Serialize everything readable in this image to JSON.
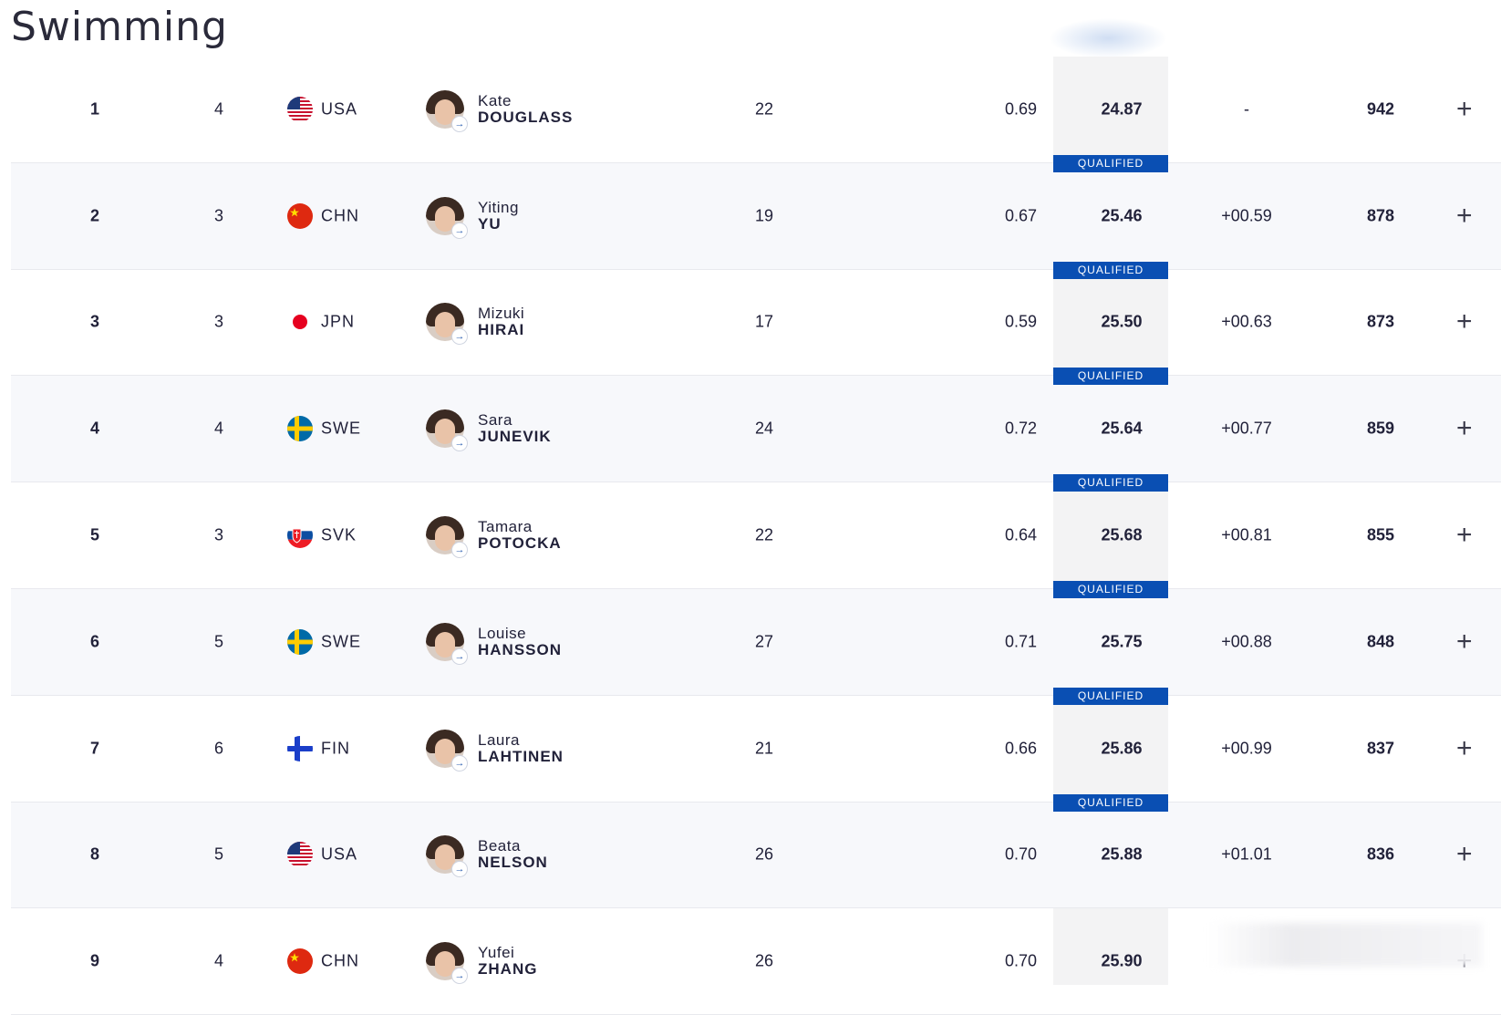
{
  "page": {
    "title": "Swimming"
  },
  "colors": {
    "qualified_bg": "#0a4fb3",
    "accent": "#0a4fb3"
  },
  "rows": [
    {
      "rank": "1",
      "lane": "4",
      "noc": "USA",
      "flag": "usa-flag",
      "first": "Kate",
      "last": "DOUGLASS",
      "age": "22",
      "rt": "0.69",
      "time": "24.87",
      "behind": "-",
      "points": "942",
      "qualified": ""
    },
    {
      "rank": "2",
      "lane": "3",
      "noc": "CHN",
      "flag": "chn-flag",
      "first": "Yiting",
      "last": "YU",
      "age": "19",
      "rt": "0.67",
      "time": "25.46",
      "behind": "+00.59",
      "points": "878",
      "qualified": "QUALIFIED"
    },
    {
      "rank": "3",
      "lane": "3",
      "noc": "JPN",
      "flag": "jpn-flag",
      "first": "Mizuki",
      "last": "HIRAI",
      "age": "17",
      "rt": "0.59",
      "time": "25.50",
      "behind": "+00.63",
      "points": "873",
      "qualified": "QUALIFIED"
    },
    {
      "rank": "4",
      "lane": "4",
      "noc": "SWE",
      "flag": "swe-flag",
      "first": "Sara",
      "last": "JUNEVIK",
      "age": "24",
      "rt": "0.72",
      "time": "25.64",
      "behind": "+00.77",
      "points": "859",
      "qualified": "QUALIFIED"
    },
    {
      "rank": "5",
      "lane": "3",
      "noc": "SVK",
      "flag": "svk-flag",
      "first": "Tamara",
      "last": "POTOCKA",
      "age": "22",
      "rt": "0.64",
      "time": "25.68",
      "behind": "+00.81",
      "points": "855",
      "qualified": "QUALIFIED"
    },
    {
      "rank": "6",
      "lane": "5",
      "noc": "SWE",
      "flag": "swe-flag",
      "first": "Louise",
      "last": "HANSSON",
      "age": "27",
      "rt": "0.71",
      "time": "25.75",
      "behind": "+00.88",
      "points": "848",
      "qualified": "QUALIFIED"
    },
    {
      "rank": "7",
      "lane": "6",
      "noc": "FIN",
      "flag": "fin-flag",
      "first": "Laura",
      "last": "LAHTINEN",
      "age": "21",
      "rt": "0.66",
      "time": "25.86",
      "behind": "+00.99",
      "points": "837",
      "qualified": "QUALIFIED"
    },
    {
      "rank": "8",
      "lane": "5",
      "noc": "USA",
      "flag": "usa-flag",
      "first": "Beata",
      "last": "NELSON",
      "age": "26",
      "rt": "0.70",
      "time": "25.88",
      "behind": "+01.01",
      "points": "836",
      "qualified": "QUALIFIED"
    },
    {
      "rank": "9",
      "lane": "4",
      "noc": "CHN",
      "flag": "chn-flag",
      "first": "Yufei",
      "last": "ZHANG",
      "age": "26",
      "rt": "0.70",
      "time": "25.90",
      "behind": "",
      "points": "",
      "qualified": ""
    }
  ],
  "expand_icon": "plus-icon",
  "athlete_link_icon": "arrow-right-icon"
}
